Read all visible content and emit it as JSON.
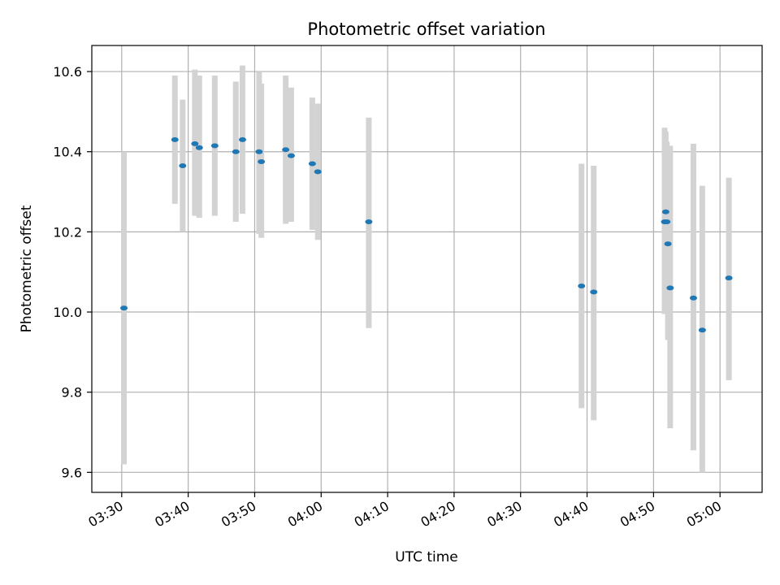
{
  "chart_data": {
    "type": "scatter",
    "title": "Photometric offset variation",
    "xlabel": "UTC time",
    "ylabel": "Photometric offset",
    "x_unit": "UTC time (HH:MM)",
    "xlim": [
      "03:25:30",
      "05:06:20"
    ],
    "ylim": [
      9.55,
      10.665
    ],
    "grid": true,
    "x_tick_labels": [
      "03:30",
      "03:40",
      "03:50",
      "04:00",
      "04:10",
      "04:20",
      "04:30",
      "04:40",
      "04:50",
      "05:00"
    ],
    "x_ticks": [
      "03:30",
      "03:40",
      "03:50",
      "04:00",
      "04:10",
      "04:20",
      "04:30",
      "04:40",
      "04:50",
      "05:00"
    ],
    "y_ticks": [
      9.6,
      9.8,
      10.0,
      10.2,
      10.4,
      10.6
    ],
    "y_tick_labels": [
      "9.6",
      "9.8",
      "10.0",
      "10.2",
      "10.4",
      "10.6"
    ],
    "colors": {
      "point": "#1f77b4",
      "errorbar": "#d3d3d3",
      "grid": "#b0b0b0"
    },
    "points": [
      {
        "time": "03:30:20",
        "y": 10.01,
        "ylow": 9.62,
        "yhigh": 10.4
      },
      {
        "time": "03:38:00",
        "y": 10.43,
        "ylow": 10.27,
        "yhigh": 10.59
      },
      {
        "time": "03:39:10",
        "y": 10.365,
        "ylow": 10.2,
        "yhigh": 10.53
      },
      {
        "time": "03:41:00",
        "y": 10.42,
        "ylow": 10.24,
        "yhigh": 10.605
      },
      {
        "time": "03:41:40",
        "y": 10.41,
        "ylow": 10.235,
        "yhigh": 10.59
      },
      {
        "time": "03:44:00",
        "y": 10.415,
        "ylow": 10.24,
        "yhigh": 10.59
      },
      {
        "time": "03:47:10",
        "y": 10.4,
        "ylow": 10.225,
        "yhigh": 10.575
      },
      {
        "time": "03:48:10",
        "y": 10.43,
        "ylow": 10.245,
        "yhigh": 10.615
      },
      {
        "time": "03:50:40",
        "y": 10.4,
        "ylow": 10.195,
        "yhigh": 10.6
      },
      {
        "time": "03:51:00",
        "y": 10.375,
        "ylow": 10.185,
        "yhigh": 10.57
      },
      {
        "time": "03:54:40",
        "y": 10.405,
        "ylow": 10.22,
        "yhigh": 10.59
      },
      {
        "time": "03:55:30",
        "y": 10.39,
        "ylow": 10.225,
        "yhigh": 10.56
      },
      {
        "time": "03:58:40",
        "y": 10.37,
        "ylow": 10.205,
        "yhigh": 10.535
      },
      {
        "time": "03:59:30",
        "y": 10.35,
        "ylow": 10.18,
        "yhigh": 10.52
      },
      {
        "time": "04:07:10",
        "y": 10.225,
        "ylow": 9.96,
        "yhigh": 10.485
      },
      {
        "time": "04:39:10",
        "y": 10.065,
        "ylow": 9.76,
        "yhigh": 10.37
      },
      {
        "time": "04:41:00",
        "y": 10.05,
        "ylow": 9.73,
        "yhigh": 10.365
      },
      {
        "time": "04:51:40",
        "y": 10.225,
        "ylow": 9.995,
        "yhigh": 10.46
      },
      {
        "time": "04:51:50",
        "y": 10.25,
        "ylow": 10.03,
        "yhigh": 10.45
      },
      {
        "time": "04:52:00",
        "y": 10.225,
        "ylow": 10.025,
        "yhigh": 10.425
      },
      {
        "time": "04:52:10",
        "y": 10.17,
        "ylow": 9.93,
        "yhigh": 10.41
      },
      {
        "time": "04:52:30",
        "y": 10.06,
        "ylow": 9.71,
        "yhigh": 10.415
      },
      {
        "time": "04:56:00",
        "y": 10.035,
        "ylow": 9.655,
        "yhigh": 10.42
      },
      {
        "time": "04:57:20",
        "y": 9.955,
        "ylow": 9.6,
        "yhigh": 10.315
      },
      {
        "time": "05:01:20",
        "y": 10.085,
        "ylow": 9.83,
        "yhigh": 10.335
      }
    ]
  }
}
